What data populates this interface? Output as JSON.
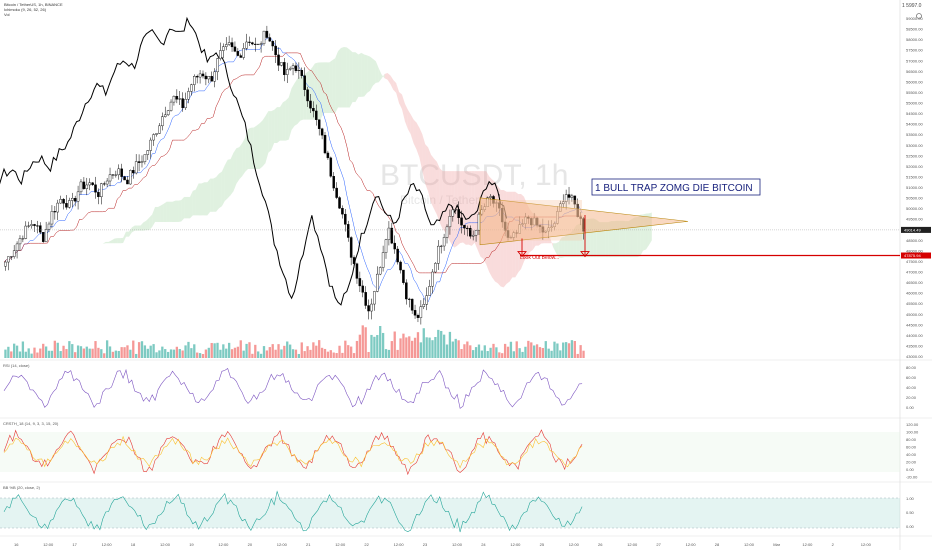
{
  "header": {
    "symbol_line": "Bitcoin / TetherUS, 1h, BINANCE",
    "indicator_line": "Ichimoku (9, 26, 52, 26)",
    "volume_line": "Vol",
    "top_right_price": "1 5997.0",
    "gear_icon": "gear-icon"
  },
  "watermark": {
    "big": "BTCUSDT, 1h",
    "small": "Bitcoin / TetherUS"
  },
  "annotations": {
    "callout": "1 BULL TRAP ZOMG DIE BITCOIN",
    "look_out": "Look Out Below...",
    "support_level": 47800,
    "current_price": 49000
  },
  "price_axis": {
    "labels": [
      "59000.00",
      "58500.00",
      "58000.00",
      "57500.00",
      "57000.00",
      "56500.00",
      "56000.00",
      "55500.00",
      "55000.00",
      "54500.00",
      "54000.00",
      "53500.00",
      "53000.00",
      "52500.00",
      "52000.00",
      "51500.00",
      "51000.00",
      "50500.00",
      "50000.00",
      "49500.00",
      "49000.00",
      "48500.00",
      "48000.00",
      "47500.00",
      "47000.00",
      "46500.00",
      "46000.00",
      "45500.00",
      "45000.00",
      "44500.00",
      "44000.00",
      "43500.00",
      "43000.00"
    ],
    "current_label": "49014.49",
    "support_label": "47875.94"
  },
  "rsi_panel": {
    "label": "RSI (14, close)",
    "axis": [
      "80.00",
      "60.00",
      "40.00",
      "20.00",
      "0.00"
    ]
  },
  "stoch_panel": {
    "label": "CRSTH_18 (14, 9, 3, 3, 15, 20)",
    "axis": [
      "120.00",
      "100.00",
      "80.00",
      "60.00",
      "40.00",
      "20.00",
      "0.00",
      "-20.00"
    ]
  },
  "bbw_panel": {
    "label": "BB %B (20, close, 2)",
    "axis": [
      "1.00",
      "0.50",
      "0.00"
    ]
  },
  "time_axis": {
    "labels": [
      "16",
      "12:00",
      "17",
      "12:00",
      "18",
      "12:00",
      "19",
      "12:00",
      "20",
      "12:00",
      "21",
      "12:00",
      "22",
      "12:00",
      "23",
      "12:00",
      "24",
      "12:00",
      "25",
      "12:00",
      "26",
      "12:00",
      "27",
      "12:00",
      "28",
      "12:00",
      "Mar",
      "12:00",
      "2",
      "12:00"
    ]
  },
  "chart_data": {
    "type": "candlestick",
    "ylim": [
      43000,
      59300
    ],
    "colors": {
      "up": "#26a69a",
      "down": "#ef5350",
      "tenkan": "#2962ff",
      "kijun": "#b71c1c",
      "chikou": "#000000",
      "cloud_up": "#a5d6a7",
      "cloud_down": "#ef9a9a",
      "triangle": "#f4b183"
    },
    "close_path": [
      47500,
      48200,
      48900,
      49400,
      48600,
      49800,
      50500,
      50100,
      51000,
      51200,
      50700,
      51500,
      51800,
      51300,
      52000,
      52500,
      53500,
      54500,
      55200,
      54800,
      55900,
      56400,
      56000,
      57200,
      57600,
      57100,
      58000,
      57500,
      58300,
      57200,
      56200,
      56800,
      55800,
      54500,
      53200,
      51500,
      50000,
      48000,
      46500,
      45200,
      47000,
      49200,
      47800,
      46000,
      44800,
      45500,
      47500,
      48800,
      50200,
      49200,
      48600,
      49800,
      50500,
      49800,
      48400,
      48900,
      49600,
      49200,
      48800,
      49400,
      50800,
      50200,
      49100
    ]
  }
}
